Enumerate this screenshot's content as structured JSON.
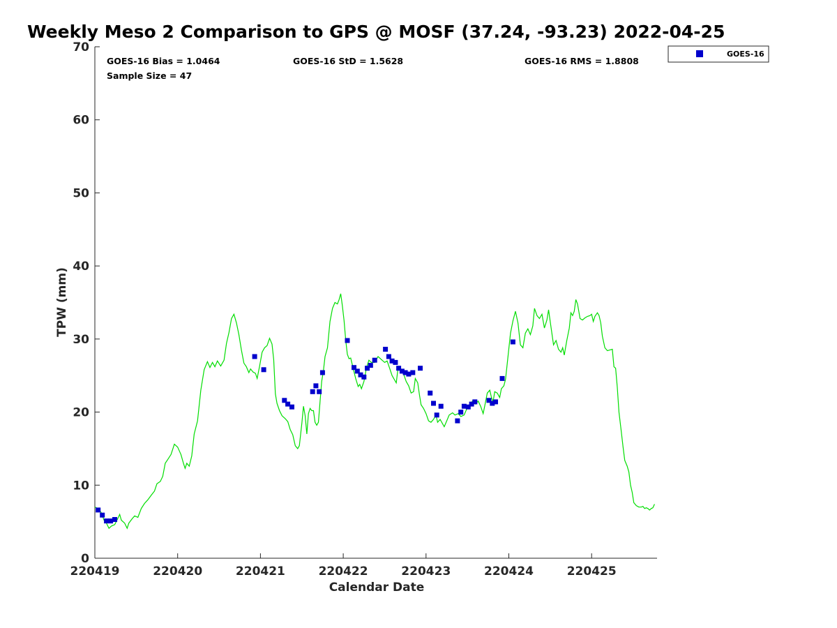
{
  "chart_data": {
    "type": "scatter",
    "title": "Weekly Meso 2 Comparison to GPS @ MOSF (37.24, -93.23) 2022-04-25",
    "xlabel": "Calendar Date",
    "ylabel": "TPW (mm)",
    "ylim": [
      0,
      70
    ],
    "yticks": [
      0,
      10,
      20,
      30,
      40,
      50,
      60,
      70
    ],
    "xlim": [
      0,
      6.78
    ],
    "xticks": [
      0,
      1,
      2,
      3,
      4,
      5,
      6
    ],
    "xtick_labels": [
      "220419",
      "220420",
      "220421",
      "220422",
      "220423",
      "220424",
      "220425"
    ],
    "grid": false,
    "legend_position": "top-right",
    "stats": {
      "bias": "GOES-16 Bias = 1.0464",
      "std": "GOES-16 StD = 1.5628",
      "rms": "GOES-16 RMS = 1.8808",
      "sample": "Sample Size = 47"
    },
    "series": [
      {
        "name": "GOES-16",
        "kind": "points",
        "color": "#0000cc",
        "points": [
          [
            0.04,
            6.6
          ],
          [
            0.09,
            5.9
          ],
          [
            0.14,
            5.1
          ],
          [
            0.19,
            5.1
          ],
          [
            0.24,
            5.3
          ],
          [
            1.93,
            27.6
          ],
          [
            2.04,
            25.8
          ],
          [
            2.29,
            21.6
          ],
          [
            2.33,
            21.1
          ],
          [
            2.38,
            20.7
          ],
          [
            2.63,
            22.8
          ],
          [
            2.67,
            23.6
          ],
          [
            2.71,
            22.8
          ],
          [
            2.75,
            25.4
          ],
          [
            3.05,
            29.8
          ],
          [
            3.13,
            26.1
          ],
          [
            3.17,
            25.6
          ],
          [
            3.21,
            25.1
          ],
          [
            3.25,
            24.8
          ],
          [
            3.29,
            26.0
          ],
          [
            3.33,
            26.4
          ],
          [
            3.38,
            27.1
          ],
          [
            3.51,
            28.6
          ],
          [
            3.55,
            27.6
          ],
          [
            3.59,
            27.0
          ],
          [
            3.63,
            26.8
          ],
          [
            3.67,
            26.0
          ],
          [
            3.71,
            25.6
          ],
          [
            3.75,
            25.4
          ],
          [
            3.79,
            25.2
          ],
          [
            3.84,
            25.4
          ],
          [
            3.93,
            26.0
          ],
          [
            4.05,
            22.6
          ],
          [
            4.09,
            21.2
          ],
          [
            4.13,
            19.6
          ],
          [
            4.18,
            20.8
          ],
          [
            4.38,
            18.8
          ],
          [
            4.42,
            20.0
          ],
          [
            4.46,
            20.8
          ],
          [
            4.51,
            20.7
          ],
          [
            4.55,
            21.1
          ],
          [
            4.59,
            21.4
          ],
          [
            4.76,
            21.6
          ],
          [
            4.8,
            21.2
          ],
          [
            4.84,
            21.4
          ],
          [
            4.92,
            24.6
          ],
          [
            5.05,
            29.6
          ]
        ]
      },
      {
        "kind": "line",
        "color": "#00dd00",
        "points": [
          [
            0.0,
            7.0
          ],
          [
            0.04,
            6.8
          ],
          [
            0.08,
            6.2
          ],
          [
            0.11,
            5.2
          ],
          [
            0.14,
            4.8
          ],
          [
            0.17,
            4.1
          ],
          [
            0.2,
            4.4
          ],
          [
            0.24,
            4.6
          ],
          [
            0.28,
            5.5
          ],
          [
            0.3,
            6.0
          ],
          [
            0.32,
            5.2
          ],
          [
            0.36,
            4.8
          ],
          [
            0.39,
            4.1
          ],
          [
            0.41,
            4.8
          ],
          [
            0.45,
            5.4
          ],
          [
            0.48,
            5.8
          ],
          [
            0.52,
            5.6
          ],
          [
            0.56,
            6.8
          ],
          [
            0.6,
            7.5
          ],
          [
            0.64,
            8.0
          ],
          [
            0.68,
            8.6
          ],
          [
            0.72,
            9.2
          ],
          [
            0.75,
            10.2
          ],
          [
            0.79,
            10.5
          ],
          [
            0.82,
            11.2
          ],
          [
            0.85,
            13.0
          ],
          [
            0.88,
            13.5
          ],
          [
            0.92,
            14.2
          ],
          [
            0.96,
            15.6
          ],
          [
            1.0,
            15.2
          ],
          [
            1.04,
            14.2
          ],
          [
            1.07,
            13.0
          ],
          [
            1.09,
            12.3
          ],
          [
            1.11,
            13.0
          ],
          [
            1.14,
            12.6
          ],
          [
            1.17,
            14.0
          ],
          [
            1.2,
            17.0
          ],
          [
            1.24,
            18.8
          ],
          [
            1.28,
            23.0
          ],
          [
            1.32,
            25.8
          ],
          [
            1.36,
            26.9
          ],
          [
            1.39,
            26.1
          ],
          [
            1.42,
            26.8
          ],
          [
            1.45,
            26.2
          ],
          [
            1.48,
            27.0
          ],
          [
            1.52,
            26.3
          ],
          [
            1.56,
            27.1
          ],
          [
            1.59,
            29.4
          ],
          [
            1.62,
            30.9
          ],
          [
            1.65,
            32.8
          ],
          [
            1.68,
            33.4
          ],
          [
            1.71,
            32.2
          ],
          [
            1.74,
            30.6
          ],
          [
            1.77,
            28.5
          ],
          [
            1.8,
            26.7
          ],
          [
            1.83,
            26.2
          ],
          [
            1.86,
            25.4
          ],
          [
            1.88,
            25.9
          ],
          [
            1.91,
            25.5
          ],
          [
            1.94,
            25.3
          ],
          [
            1.96,
            24.6
          ],
          [
            1.99,
            26.3
          ],
          [
            2.02,
            28.2
          ],
          [
            2.05,
            28.8
          ],
          [
            2.08,
            29.1
          ],
          [
            2.11,
            30.1
          ],
          [
            2.14,
            29.3
          ],
          [
            2.16,
            27.2
          ],
          [
            2.18,
            22.5
          ],
          [
            2.2,
            21.2
          ],
          [
            2.23,
            20.2
          ],
          [
            2.26,
            19.5
          ],
          [
            2.3,
            19.1
          ],
          [
            2.33,
            18.7
          ],
          [
            2.36,
            17.6
          ],
          [
            2.39,
            16.9
          ],
          [
            2.42,
            15.4
          ],
          [
            2.45,
            15.0
          ],
          [
            2.47,
            15.4
          ],
          [
            2.5,
            18.5
          ],
          [
            2.52,
            20.8
          ],
          [
            2.54,
            19.5
          ],
          [
            2.56,
            17.0
          ],
          [
            2.58,
            19.8
          ],
          [
            2.6,
            20.5
          ],
          [
            2.62,
            20.2
          ],
          [
            2.64,
            20.2
          ],
          [
            2.66,
            18.6
          ],
          [
            2.68,
            18.2
          ],
          [
            2.7,
            18.6
          ],
          [
            2.72,
            21.5
          ],
          [
            2.74,
            24.2
          ],
          [
            2.76,
            25.6
          ],
          [
            2.78,
            27.6
          ],
          [
            2.81,
            28.8
          ],
          [
            2.84,
            32.4
          ],
          [
            2.87,
            34.2
          ],
          [
            2.9,
            35.0
          ],
          [
            2.93,
            34.8
          ],
          [
            2.95,
            35.4
          ],
          [
            2.97,
            36.2
          ],
          [
            2.99,
            34.5
          ],
          [
            3.01,
            32.5
          ],
          [
            3.03,
            29.8
          ],
          [
            3.05,
            27.9
          ],
          [
            3.07,
            27.3
          ],
          [
            3.09,
            27.4
          ],
          [
            3.12,
            26.0
          ],
          [
            3.15,
            24.6
          ],
          [
            3.18,
            23.5
          ],
          [
            3.2,
            23.8
          ],
          [
            3.22,
            23.2
          ],
          [
            3.25,
            24.2
          ],
          [
            3.28,
            26.0
          ],
          [
            3.31,
            27.1
          ],
          [
            3.34,
            26.8
          ],
          [
            3.38,
            26.8
          ],
          [
            3.42,
            27.6
          ],
          [
            3.46,
            27.2
          ],
          [
            3.5,
            26.8
          ],
          [
            3.53,
            27.0
          ],
          [
            3.56,
            26.0
          ],
          [
            3.59,
            25.0
          ],
          [
            3.62,
            24.4
          ],
          [
            3.64,
            24.0
          ],
          [
            3.66,
            25.8
          ],
          [
            3.69,
            26.0
          ],
          [
            3.72,
            25.5
          ],
          [
            3.76,
            24.2
          ],
          [
            3.79,
            23.6
          ],
          [
            3.82,
            22.6
          ],
          [
            3.85,
            22.8
          ],
          [
            3.87,
            24.6
          ],
          [
            3.9,
            24.0
          ],
          [
            3.92,
            22.4
          ],
          [
            3.94,
            21.0
          ],
          [
            3.97,
            20.5
          ],
          [
            4.0,
            19.8
          ],
          [
            4.03,
            18.8
          ],
          [
            4.06,
            18.6
          ],
          [
            4.09,
            19.0
          ],
          [
            4.12,
            19.6
          ],
          [
            4.14,
            18.6
          ],
          [
            4.17,
            19.0
          ],
          [
            4.2,
            18.4
          ],
          [
            4.22,
            18.0
          ],
          [
            4.25,
            18.8
          ],
          [
            4.28,
            19.6
          ],
          [
            4.32,
            19.9
          ],
          [
            4.35,
            19.6
          ],
          [
            4.39,
            19.8
          ],
          [
            4.42,
            19.4
          ],
          [
            4.46,
            19.6
          ],
          [
            4.49,
            20.4
          ],
          [
            4.53,
            20.8
          ],
          [
            4.56,
            21.5
          ],
          [
            4.6,
            21.1
          ],
          [
            4.63,
            21.5
          ],
          [
            4.66,
            20.8
          ],
          [
            4.69,
            19.8
          ],
          [
            4.71,
            20.9
          ],
          [
            4.74,
            22.6
          ],
          [
            4.77,
            23.0
          ],
          [
            4.79,
            22.0
          ],
          [
            4.81,
            21.4
          ],
          [
            4.83,
            22.8
          ],
          [
            4.86,
            22.6
          ],
          [
            4.89,
            22.0
          ],
          [
            4.91,
            23.2
          ],
          [
            4.94,
            23.6
          ],
          [
            4.96,
            24.5
          ],
          [
            4.99,
            27.6
          ],
          [
            5.02,
            30.8
          ],
          [
            5.05,
            32.5
          ],
          [
            5.08,
            33.8
          ],
          [
            5.11,
            32.2
          ],
          [
            5.14,
            29.2
          ],
          [
            5.17,
            28.8
          ],
          [
            5.2,
            30.8
          ],
          [
            5.23,
            31.4
          ],
          [
            5.26,
            30.6
          ],
          [
            5.29,
            31.8
          ],
          [
            5.31,
            34.2
          ],
          [
            5.34,
            33.2
          ],
          [
            5.37,
            32.8
          ],
          [
            5.4,
            33.4
          ],
          [
            5.43,
            31.5
          ],
          [
            5.46,
            32.6
          ],
          [
            5.48,
            34.0
          ],
          [
            5.51,
            31.6
          ],
          [
            5.54,
            29.2
          ],
          [
            5.57,
            29.8
          ],
          [
            5.6,
            28.6
          ],
          [
            5.63,
            28.2
          ],
          [
            5.65,
            28.8
          ],
          [
            5.67,
            27.8
          ],
          [
            5.7,
            29.8
          ],
          [
            5.73,
            31.5
          ],
          [
            5.75,
            33.6
          ],
          [
            5.77,
            33.2
          ],
          [
            5.79,
            33.8
          ],
          [
            5.81,
            35.4
          ],
          [
            5.83,
            34.8
          ],
          [
            5.86,
            32.8
          ],
          [
            5.89,
            32.6
          ],
          [
            5.92,
            32.9
          ],
          [
            5.95,
            33.1
          ],
          [
            5.98,
            33.2
          ],
          [
            6.0,
            33.4
          ],
          [
            6.02,
            32.4
          ],
          [
            6.04,
            33.1
          ],
          [
            6.07,
            33.6
          ],
          [
            6.09,
            33.2
          ],
          [
            6.11,
            32.2
          ],
          [
            6.13,
            30.4
          ],
          [
            6.16,
            28.8
          ],
          [
            6.19,
            28.4
          ],
          [
            6.22,
            28.5
          ],
          [
            6.25,
            28.6
          ],
          [
            6.27,
            26.2
          ],
          [
            6.29,
            26.0
          ],
          [
            6.31,
            23.4
          ],
          [
            6.33,
            20.0
          ],
          [
            6.36,
            17.2
          ],
          [
            6.38,
            15.2
          ],
          [
            6.4,
            13.4
          ],
          [
            6.43,
            12.6
          ],
          [
            6.45,
            11.8
          ],
          [
            6.47,
            10.0
          ],
          [
            6.49,
            9.0
          ],
          [
            6.51,
            7.6
          ],
          [
            6.54,
            7.2
          ],
          [
            6.57,
            7.0
          ],
          [
            6.6,
            7.0
          ],
          [
            6.62,
            7.1
          ],
          [
            6.64,
            6.8
          ],
          [
            6.66,
            6.9
          ],
          [
            6.68,
            6.8
          ],
          [
            6.7,
            6.6
          ],
          [
            6.72,
            6.8
          ],
          [
            6.74,
            6.9
          ],
          [
            6.76,
            7.4
          ]
        ]
      }
    ]
  }
}
